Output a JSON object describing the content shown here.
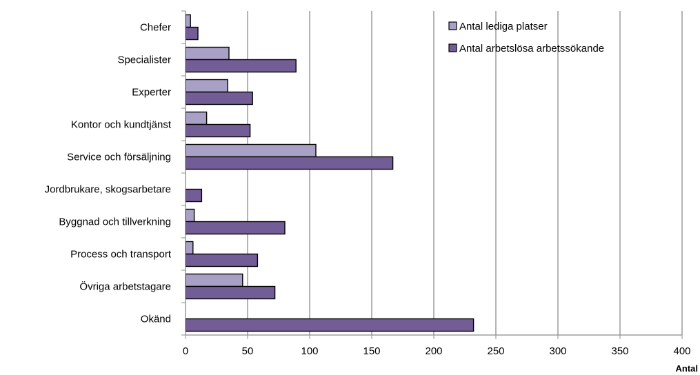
{
  "chart_data": {
    "type": "bar",
    "orientation": "horizontal",
    "categories": [
      "Chefer",
      "Specialister",
      "Experter",
      "Kontor och kundtjänst",
      "Service och försäljning",
      "Jordbrukare, skogsarbetare",
      "Byggnad och tillverkning",
      "Process och transport",
      "Övriga arbetstagare",
      "Okänd"
    ],
    "series": [
      {
        "name": "Antal lediga platser",
        "color": "#a9a0c6",
        "values": [
          4,
          35,
          34,
          17,
          105,
          0,
          7,
          6,
          46,
          0
        ]
      },
      {
        "name": "Antal arbetslösa arbetssökande",
        "color": "#735d96",
        "values": [
          10,
          89,
          54,
          52,
          167,
          13,
          80,
          58,
          72,
          232
        ]
      }
    ],
    "xlabel": "Antal",
    "xlim": [
      0,
      400
    ],
    "xticks": [
      0,
      50,
      100,
      150,
      200,
      250,
      300,
      350,
      400
    ],
    "grid": "vertical",
    "legend_position": "top-right"
  }
}
